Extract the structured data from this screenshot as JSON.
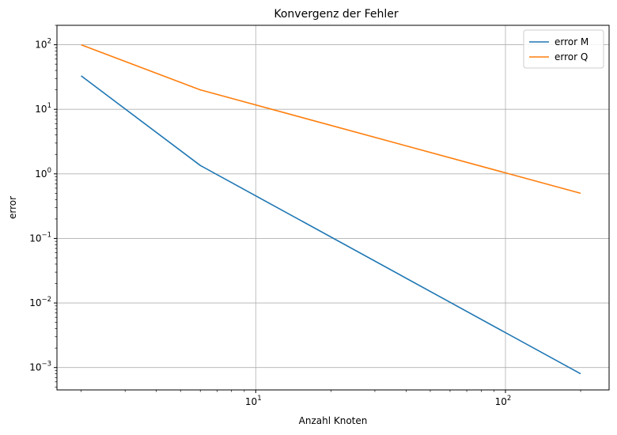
{
  "chart_data": {
    "type": "line",
    "title": "Konvergenz der Fehler",
    "xlabel": "Anzahl Knoten",
    "ylabel": "error",
    "xscale": "log",
    "yscale": "log",
    "xlim": [
      1.6,
      260
    ],
    "ylim": [
      0.00045,
      200
    ],
    "grid": true,
    "legend_position": "top-right",
    "x": [
      2,
      6,
      200
    ],
    "series": [
      {
        "name": "error M",
        "color": "#1f77b4",
        "values": [
          33,
          1.35,
          0.0008
        ]
      },
      {
        "name": "error Q",
        "color": "#ff7f0e",
        "values": [
          100,
          20,
          0.5
        ]
      }
    ],
    "x_ticks": [
      {
        "value": 10,
        "base": "10",
        "exp": "1"
      },
      {
        "value": 100,
        "base": "10",
        "exp": "2"
      }
    ],
    "y_ticks": [
      {
        "value": 100,
        "base": "10",
        "exp": "2"
      },
      {
        "value": 10,
        "base": "10",
        "exp": "1"
      },
      {
        "value": 1,
        "base": "10",
        "exp": "0"
      },
      {
        "value": 0.1,
        "base": "10",
        "exp": "−1"
      },
      {
        "value": 0.01,
        "base": "10",
        "exp": "−2"
      },
      {
        "value": 0.001,
        "base": "10",
        "exp": "−3"
      }
    ]
  }
}
